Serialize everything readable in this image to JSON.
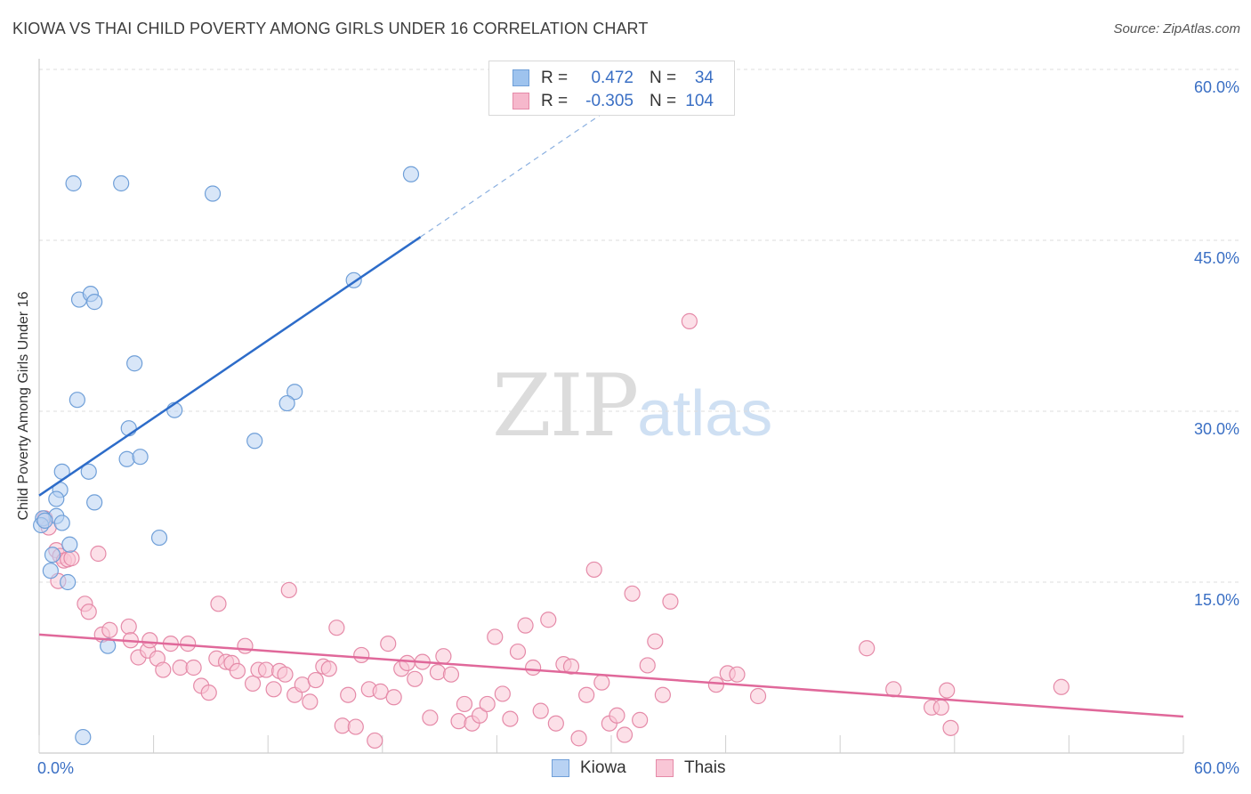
{
  "header": {
    "title": "KIOWA VS THAI CHILD POVERTY AMONG GIRLS UNDER 16 CORRELATION CHART",
    "source": "Source: ZipAtlas.com"
  },
  "watermark": {
    "zip": "ZIP",
    "atlas": "atlas"
  },
  "legend": {
    "rows": [
      {
        "r_label": "R =",
        "r_value": "0.472",
        "n_label": "N =",
        "n_value": "34",
        "color": "#9ec3ee",
        "border": "#6f9fd8"
      },
      {
        "r_label": "R =",
        "r_value": "-0.305",
        "n_label": "N =",
        "n_value": "104",
        "color": "#f6b8cc",
        "border": "#e58aa8"
      }
    ]
  },
  "bottom_legend": [
    {
      "label": "Kiowa",
      "color": "#b8d2f3",
      "border": "#6f9fd8"
    },
    {
      "label": "Thais",
      "color": "#f9c6d6",
      "border": "#e58aa8"
    }
  ],
  "chart_data": {
    "type": "scatter",
    "title": "KIOWA VS THAI CHILD POVERTY AMONG GIRLS UNDER 16 CORRELATION CHART",
    "xlabel": "",
    "ylabel": "Child Poverty Among Girls Under 16",
    "xlim": [
      0,
      60
    ],
    "ylim": [
      0,
      60
    ],
    "x_tick_labels": [
      "0.0%",
      "60.0%"
    ],
    "y_tick_labels": [
      "15.0%",
      "30.0%",
      "45.0%",
      "60.0%"
    ],
    "y_ticks": [
      15,
      30,
      45,
      60
    ],
    "grid": true,
    "legend_position": "top-center",
    "series": [
      {
        "name": "Kiowa",
        "color": "#6f9fd8",
        "fill": "#b8d2f3",
        "line_color": "#2d6cc9",
        "trend": {
          "x0": 0,
          "y0": 22.6,
          "x1": 20,
          "y1": 45.3,
          "dashed_to_x": 31,
          "dashed_to_y": 57.8
        },
        "points": [
          [
            1.8,
            50.0
          ],
          [
            4.3,
            50.0
          ],
          [
            9.1,
            49.1
          ],
          [
            19.5,
            50.8
          ],
          [
            2.1,
            39.8
          ],
          [
            2.7,
            40.3
          ],
          [
            2.9,
            39.6
          ],
          [
            16.5,
            41.5
          ],
          [
            5.0,
            34.2
          ],
          [
            2.0,
            31.0
          ],
          [
            7.1,
            30.1
          ],
          [
            13.4,
            31.7
          ],
          [
            13.0,
            30.7
          ],
          [
            4.7,
            28.5
          ],
          [
            11.3,
            27.4
          ],
          [
            2.6,
            24.7
          ],
          [
            4.6,
            25.8
          ],
          [
            5.3,
            26.0
          ],
          [
            1.2,
            24.7
          ],
          [
            1.1,
            23.1
          ],
          [
            0.9,
            22.3
          ],
          [
            2.9,
            22.0
          ],
          [
            0.9,
            20.8
          ],
          [
            0.2,
            20.6
          ],
          [
            0.1,
            20.0
          ],
          [
            1.2,
            20.2
          ],
          [
            6.3,
            18.9
          ],
          [
            1.6,
            18.3
          ],
          [
            0.7,
            17.4
          ],
          [
            0.6,
            16.0
          ],
          [
            1.5,
            15.0
          ],
          [
            3.6,
            9.4
          ],
          [
            2.3,
            1.4
          ],
          [
            0.3,
            20.4
          ]
        ]
      },
      {
        "name": "Thais",
        "color": "#e58aa8",
        "fill": "#f9c6d6",
        "line_color": "#e0689a",
        "trend": {
          "x0": 0,
          "y0": 10.4,
          "x1": 60,
          "y1": 3.2
        },
        "points": [
          [
            0.3,
            20.6
          ],
          [
            0.5,
            19.8
          ],
          [
            0.9,
            17.8
          ],
          [
            1.1,
            17.3
          ],
          [
            1.3,
            16.9
          ],
          [
            1.5,
            17.0
          ],
          [
            1.7,
            17.1
          ],
          [
            3.1,
            17.5
          ],
          [
            1.0,
            15.1
          ],
          [
            2.4,
            13.1
          ],
          [
            2.6,
            12.4
          ],
          [
            3.3,
            10.4
          ],
          [
            3.7,
            10.8
          ],
          [
            4.7,
            11.1
          ],
          [
            5.2,
            8.4
          ],
          [
            5.7,
            9.0
          ],
          [
            5.8,
            9.9
          ],
          [
            6.2,
            8.3
          ],
          [
            6.5,
            7.3
          ],
          [
            6.9,
            9.6
          ],
          [
            7.4,
            7.5
          ],
          [
            7.8,
            9.6
          ],
          [
            8.1,
            7.5
          ],
          [
            8.5,
            5.9
          ],
          [
            8.9,
            5.3
          ],
          [
            9.3,
            8.3
          ],
          [
            9.4,
            13.1
          ],
          [
            9.8,
            8.0
          ],
          [
            10.1,
            7.9
          ],
          [
            10.4,
            7.2
          ],
          [
            10.8,
            9.4
          ],
          [
            11.2,
            6.1
          ],
          [
            11.5,
            7.3
          ],
          [
            11.9,
            7.3
          ],
          [
            12.3,
            5.6
          ],
          [
            12.6,
            7.2
          ],
          [
            12.9,
            6.9
          ],
          [
            13.1,
            14.3
          ],
          [
            13.4,
            5.1
          ],
          [
            13.8,
            6.0
          ],
          [
            14.2,
            4.5
          ],
          [
            14.5,
            6.4
          ],
          [
            14.9,
            7.6
          ],
          [
            15.2,
            7.4
          ],
          [
            15.6,
            11.0
          ],
          [
            15.9,
            2.4
          ],
          [
            16.2,
            5.1
          ],
          [
            16.6,
            2.3
          ],
          [
            16.9,
            8.6
          ],
          [
            17.3,
            5.6
          ],
          [
            17.6,
            1.1
          ],
          [
            17.9,
            5.4
          ],
          [
            18.3,
            9.6
          ],
          [
            18.6,
            4.9
          ],
          [
            19.0,
            7.4
          ],
          [
            19.3,
            7.9
          ],
          [
            19.7,
            6.5
          ],
          [
            20.1,
            8.0
          ],
          [
            20.5,
            3.1
          ],
          [
            20.9,
            7.1
          ],
          [
            21.2,
            8.5
          ],
          [
            21.6,
            6.9
          ],
          [
            22.0,
            2.8
          ],
          [
            22.3,
            4.3
          ],
          [
            22.7,
            2.6
          ],
          [
            23.1,
            3.3
          ],
          [
            23.5,
            4.3
          ],
          [
            23.9,
            10.2
          ],
          [
            24.3,
            5.2
          ],
          [
            24.7,
            3.0
          ],
          [
            25.1,
            8.9
          ],
          [
            25.5,
            11.2
          ],
          [
            25.9,
            7.5
          ],
          [
            26.3,
            3.7
          ],
          [
            26.7,
            11.7
          ],
          [
            27.1,
            2.6
          ],
          [
            27.5,
            7.8
          ],
          [
            27.9,
            7.6
          ],
          [
            28.3,
            1.3
          ],
          [
            28.7,
            5.1
          ],
          [
            29.1,
            16.1
          ],
          [
            29.5,
            6.2
          ],
          [
            29.9,
            2.6
          ],
          [
            30.3,
            3.3
          ],
          [
            30.7,
            1.6
          ],
          [
            31.1,
            14.0
          ],
          [
            31.5,
            2.9
          ],
          [
            31.9,
            7.7
          ],
          [
            32.3,
            9.8
          ],
          [
            32.7,
            5.1
          ],
          [
            33.1,
            13.3
          ],
          [
            34.1,
            37.9
          ],
          [
            35.5,
            6.0
          ],
          [
            36.1,
            7.0
          ],
          [
            36.6,
            6.9
          ],
          [
            37.7,
            5.0
          ],
          [
            43.4,
            9.2
          ],
          [
            44.8,
            5.6
          ],
          [
            46.8,
            4.0
          ],
          [
            47.3,
            4.0
          ],
          [
            47.6,
            5.5
          ],
          [
            47.8,
            2.2
          ],
          [
            53.6,
            5.8
          ],
          [
            4.8,
            9.9
          ]
        ]
      }
    ]
  }
}
